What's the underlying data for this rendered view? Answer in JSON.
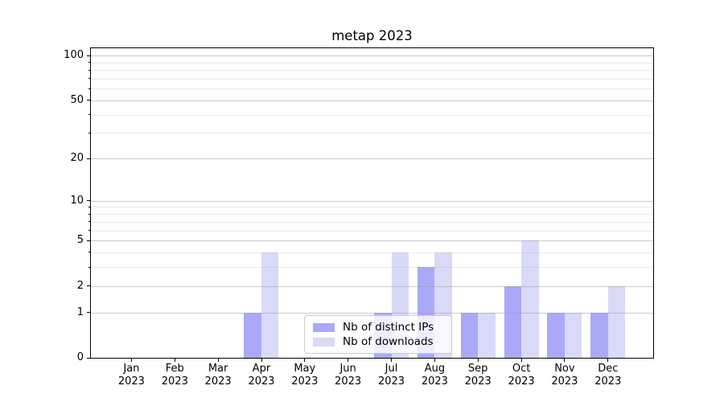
{
  "chart_data": {
    "type": "bar",
    "title": "metap 2023",
    "categories": [
      {
        "month": "Jan",
        "year": "2023"
      },
      {
        "month": "Feb",
        "year": "2023"
      },
      {
        "month": "Mar",
        "year": "2023"
      },
      {
        "month": "Apr",
        "year": "2023"
      },
      {
        "month": "May",
        "year": "2023"
      },
      {
        "month": "Jun",
        "year": "2023"
      },
      {
        "month": "Jul",
        "year": "2023"
      },
      {
        "month": "Aug",
        "year": "2023"
      },
      {
        "month": "Sep",
        "year": "2023"
      },
      {
        "month": "Oct",
        "year": "2023"
      },
      {
        "month": "Nov",
        "year": "2023"
      },
      {
        "month": "Dec",
        "year": "2023"
      }
    ],
    "series": [
      {
        "name": "Nb of distinct IPs",
        "color": "#a9a9f8",
        "values": [
          0,
          0,
          0,
          1,
          0,
          0,
          1,
          3,
          1,
          2,
          1,
          1
        ]
      },
      {
        "name": "Nb of downloads",
        "color": "#d9d9f8",
        "values": [
          0,
          0,
          0,
          4,
          0,
          0,
          4,
          4,
          1,
          5,
          1,
          2
        ]
      }
    ],
    "xlabel": "",
    "ylabel": "",
    "yscale": "log1p",
    "ylim": [
      0,
      113
    ],
    "y_ticks_major": [
      0,
      1,
      2,
      5,
      10,
      20,
      50,
      100
    ],
    "y_ticks_minor": [
      3,
      4,
      6,
      7,
      8,
      9,
      30,
      40,
      60,
      70,
      80,
      90
    ],
    "grid": "both, drawn above bars",
    "legend_position": "lower center inside axes"
  }
}
